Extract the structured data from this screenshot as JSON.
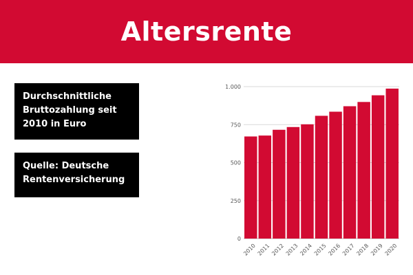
{
  "header": {
    "title": "Altersrente"
  },
  "info": {
    "description": "Durchschnittliche Bruttozahlung seit 2010 in Euro",
    "source": "Quelle: Deutsche Rentenversicherung"
  },
  "colors": {
    "brand_red": "#d20a32",
    "bar": "#d20a32",
    "box_bg": "#000000"
  },
  "chart_data": {
    "type": "bar",
    "categories": [
      "2010",
      "2011",
      "2012",
      "2013",
      "2014",
      "2015",
      "2016",
      "2017",
      "2018",
      "2019",
      "2020"
    ],
    "values": [
      672,
      678,
      716,
      734,
      752,
      808,
      835,
      871,
      899,
      943,
      987
    ],
    "ylim": [
      0,
      1000
    ],
    "yticks": [
      0,
      250,
      500,
      750,
      1000
    ],
    "ytick_labels": [
      "0",
      "250",
      "500",
      "750",
      "1.000"
    ],
    "grid": true,
    "legend": "none"
  }
}
